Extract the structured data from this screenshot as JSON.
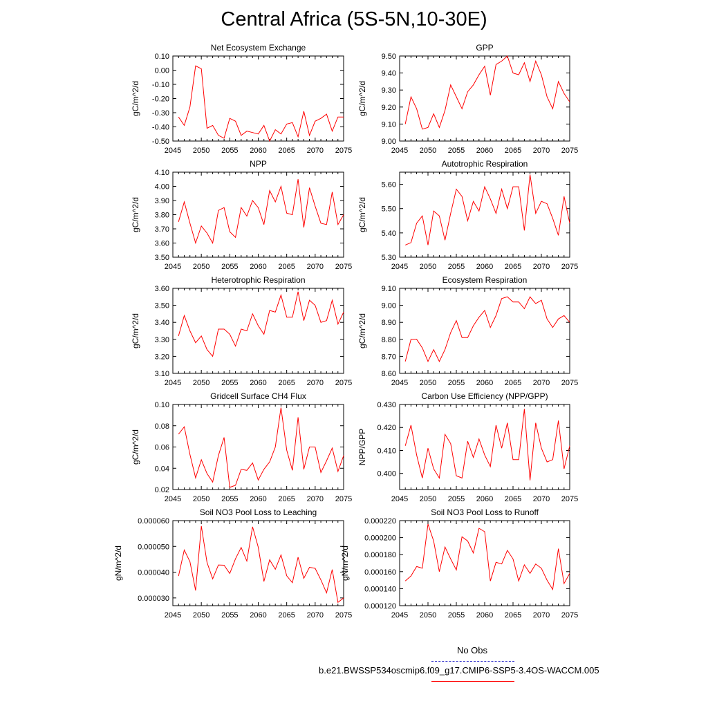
{
  "figure": {
    "title": "Central Africa (5S-5N,10-30E)"
  },
  "legend": {
    "obs_label": "No Obs",
    "obs_color": "#3333cc",
    "model_label": "b.e21.BWSSP534oscmip6.f09_g17.CMIP6-SSP5-3.4OS-WACCM.005",
    "model_color": "#ff0000"
  },
  "chart_data": [
    {
      "type": "line",
      "title": "Net Ecosystem Exchange",
      "ylabel": "gC/m^2/d",
      "xlim": [
        2045,
        2075
      ],
      "ylim": [
        -0.5,
        0.1
      ],
      "xticks": [
        "2045",
        "2050",
        "2055",
        "2060",
        "2065",
        "2070",
        "2075"
      ],
      "yticks": [
        "-0.50",
        "-0.40",
        "-0.30",
        "-0.20",
        "-0.10",
        "0.00",
        "0.10"
      ],
      "x": [
        2046,
        2047,
        2048,
        2049,
        2050,
        2051,
        2052,
        2053,
        2054,
        2055,
        2056,
        2057,
        2058,
        2059,
        2060,
        2061,
        2062,
        2063,
        2064,
        2065,
        2066,
        2067,
        2068,
        2069,
        2070,
        2071,
        2072,
        2073,
        2074,
        2075
      ],
      "y": [
        -0.33,
        -0.39,
        -0.26,
        0.03,
        0.01,
        -0.41,
        -0.39,
        -0.46,
        -0.48,
        -0.34,
        -0.36,
        -0.46,
        -0.43,
        -0.44,
        -0.45,
        -0.39,
        -0.5,
        -0.42,
        -0.45,
        -0.38,
        -0.37,
        -0.47,
        -0.29,
        -0.46,
        -0.36,
        -0.34,
        -0.31,
        -0.43,
        -0.33,
        -0.33
      ]
    },
    {
      "type": "line",
      "title": "GPP",
      "ylabel": "gC/m^2/d",
      "xlim": [
        2045,
        2075
      ],
      "ylim": [
        9.0,
        9.5
      ],
      "xticks": [
        "2045",
        "2050",
        "2055",
        "2060",
        "2065",
        "2070",
        "2075"
      ],
      "yticks": [
        "9.00",
        "9.10",
        "9.20",
        "9.30",
        "9.40",
        "9.50"
      ],
      "x": [
        2046,
        2047,
        2048,
        2049,
        2050,
        2051,
        2052,
        2053,
        2054,
        2055,
        2056,
        2057,
        2058,
        2059,
        2060,
        2061,
        2062,
        2063,
        2064,
        2065,
        2066,
        2067,
        2068,
        2069,
        2070,
        2071,
        2072,
        2073,
        2074,
        2075
      ],
      "y": [
        9.1,
        9.26,
        9.19,
        9.07,
        9.08,
        9.16,
        9.08,
        9.18,
        9.33,
        9.26,
        9.19,
        9.29,
        9.33,
        9.39,
        9.44,
        9.27,
        9.45,
        9.47,
        9.5,
        9.4,
        9.39,
        9.46,
        9.35,
        9.47,
        9.39,
        9.26,
        9.19,
        9.35,
        9.28,
        9.23
      ]
    },
    {
      "type": "line",
      "title": "NPP",
      "ylabel": "gC/m^2/d",
      "xlim": [
        2045,
        2075
      ],
      "ylim": [
        3.5,
        4.1
      ],
      "xticks": [
        "2045",
        "2050",
        "2055",
        "2060",
        "2065",
        "2070",
        "2075"
      ],
      "yticks": [
        "3.50",
        "3.60",
        "3.70",
        "3.80",
        "3.90",
        "4.00",
        "4.10"
      ],
      "x": [
        2046,
        2047,
        2048,
        2049,
        2050,
        2051,
        2052,
        2053,
        2054,
        2055,
        2056,
        2057,
        2058,
        2059,
        2060,
        2061,
        2062,
        2063,
        2064,
        2065,
        2066,
        2067,
        2068,
        2069,
        2070,
        2071,
        2072,
        2073,
        2074,
        2075
      ],
      "y": [
        3.75,
        3.89,
        3.74,
        3.6,
        3.72,
        3.67,
        3.6,
        3.83,
        3.85,
        3.68,
        3.64,
        3.85,
        3.79,
        3.9,
        3.85,
        3.73,
        3.97,
        3.89,
        4.0,
        3.81,
        3.8,
        4.05,
        3.71,
        3.99,
        3.86,
        3.74,
        3.73,
        3.96,
        3.73,
        3.8
      ]
    },
    {
      "type": "line",
      "title": "Autotrophic Respiration",
      "ylabel": "gC/m^2/d",
      "xlim": [
        2045,
        2075
      ],
      "ylim": [
        5.3,
        5.65
      ],
      "xticks": [
        "2045",
        "2050",
        "2055",
        "2060",
        "2065",
        "2070",
        "2075"
      ],
      "yticks": [
        "5.30",
        "5.40",
        "5.50",
        "5.60"
      ],
      "x": [
        2046,
        2047,
        2048,
        2049,
        2050,
        2051,
        2052,
        2053,
        2054,
        2055,
        2056,
        2057,
        2058,
        2059,
        2060,
        2061,
        2062,
        2063,
        2064,
        2065,
        2066,
        2067,
        2068,
        2069,
        2070,
        2071,
        2072,
        2073,
        2074,
        2075
      ],
      "y": [
        5.35,
        5.36,
        5.44,
        5.47,
        5.35,
        5.49,
        5.47,
        5.37,
        5.48,
        5.58,
        5.55,
        5.45,
        5.53,
        5.49,
        5.59,
        5.54,
        5.48,
        5.58,
        5.5,
        5.59,
        5.59,
        5.41,
        5.64,
        5.48,
        5.53,
        5.52,
        5.46,
        5.39,
        5.55,
        5.44
      ]
    },
    {
      "type": "line",
      "title": "Heterotrophic Respiration",
      "ylabel": "gC/m^2/d",
      "xlim": [
        2045,
        2075
      ],
      "ylim": [
        3.1,
        3.6
      ],
      "xticks": [
        "2045",
        "2050",
        "2055",
        "2060",
        "2065",
        "2070",
        "2075"
      ],
      "yticks": [
        "3.10",
        "3.20",
        "3.30",
        "3.40",
        "3.50",
        "3.60"
      ],
      "x": [
        2046,
        2047,
        2048,
        2049,
        2050,
        2051,
        2052,
        2053,
        2054,
        2055,
        2056,
        2057,
        2058,
        2059,
        2060,
        2061,
        2062,
        2063,
        2064,
        2065,
        2066,
        2067,
        2068,
        2069,
        2070,
        2071,
        2072,
        2073,
        2074,
        2075
      ],
      "y": [
        3.32,
        3.44,
        3.35,
        3.28,
        3.32,
        3.24,
        3.2,
        3.36,
        3.36,
        3.33,
        3.26,
        3.36,
        3.35,
        3.45,
        3.38,
        3.33,
        3.47,
        3.46,
        3.56,
        3.43,
        3.43,
        3.58,
        3.41,
        3.53,
        3.5,
        3.4,
        3.41,
        3.53,
        3.39,
        3.46
      ]
    },
    {
      "type": "line",
      "title": "Ecosystem Respiration",
      "ylabel": "gC/m^2/d",
      "xlim": [
        2045,
        2075
      ],
      "ylim": [
        8.6,
        9.1
      ],
      "xticks": [
        "2045",
        "2050",
        "2055",
        "2060",
        "2065",
        "2070",
        "2075"
      ],
      "yticks": [
        "8.60",
        "8.70",
        "8.80",
        "8.90",
        "9.00",
        "9.10"
      ],
      "x": [
        2046,
        2047,
        2048,
        2049,
        2050,
        2051,
        2052,
        2053,
        2054,
        2055,
        2056,
        2057,
        2058,
        2059,
        2060,
        2061,
        2062,
        2063,
        2064,
        2065,
        2066,
        2067,
        2068,
        2069,
        2070,
        2071,
        2072,
        2073,
        2074,
        2075
      ],
      "y": [
        8.67,
        8.8,
        8.8,
        8.75,
        8.67,
        8.74,
        8.67,
        8.74,
        8.84,
        8.91,
        8.81,
        8.81,
        8.88,
        8.93,
        8.97,
        8.87,
        8.94,
        9.04,
        9.05,
        9.02,
        9.02,
        8.98,
        9.05,
        9.01,
        9.03,
        8.92,
        8.87,
        8.92,
        8.94,
        8.9
      ]
    },
    {
      "type": "line",
      "title": "Gridcell Surface CH4 Flux",
      "ylabel": "gC/m^2/d",
      "xlim": [
        2045,
        2075
      ],
      "ylim": [
        0.02,
        0.1
      ],
      "xticks": [
        "2045",
        "2050",
        "2055",
        "2060",
        "2065",
        "2070",
        "2075"
      ],
      "yticks": [
        "0.02",
        "0.04",
        "0.06",
        "0.08",
        "0.10"
      ],
      "x": [
        2046,
        2047,
        2048,
        2049,
        2050,
        2051,
        2052,
        2053,
        2054,
        2055,
        2056,
        2057,
        2058,
        2059,
        2060,
        2061,
        2062,
        2063,
        2064,
        2065,
        2066,
        2067,
        2068,
        2069,
        2070,
        2071,
        2072,
        2073,
        2074,
        2075
      ],
      "y": [
        0.072,
        0.079,
        0.053,
        0.031,
        0.048,
        0.035,
        0.027,
        0.052,
        0.069,
        0.022,
        0.024,
        0.039,
        0.038,
        0.045,
        0.029,
        0.039,
        0.046,
        0.06,
        0.097,
        0.057,
        0.038,
        0.088,
        0.039,
        0.06,
        0.06,
        0.036,
        0.047,
        0.059,
        0.037,
        0.052
      ]
    },
    {
      "type": "line",
      "title": "Carbon Use Efficiency (NPP/GPP)",
      "ylabel": "NPP/GPP",
      "xlim": [
        2045,
        2075
      ],
      "ylim": [
        0.393,
        0.43
      ],
      "xticks": [
        "2045",
        "2050",
        "2055",
        "2060",
        "2065",
        "2070",
        "2075"
      ],
      "yticks": [
        "0.400",
        "0.410",
        "0.420",
        "0.430"
      ],
      "x": [
        2046,
        2047,
        2048,
        2049,
        2050,
        2051,
        2052,
        2053,
        2054,
        2055,
        2056,
        2057,
        2058,
        2059,
        2060,
        2061,
        2062,
        2063,
        2064,
        2065,
        2066,
        2067,
        2068,
        2069,
        2070,
        2071,
        2072,
        2073,
        2074,
        2075
      ],
      "y": [
        0.412,
        0.421,
        0.408,
        0.398,
        0.411,
        0.402,
        0.398,
        0.417,
        0.413,
        0.399,
        0.398,
        0.414,
        0.407,
        0.415,
        0.408,
        0.403,
        0.421,
        0.411,
        0.422,
        0.406,
        0.406,
        0.428,
        0.397,
        0.422,
        0.411,
        0.405,
        0.406,
        0.423,
        0.402,
        0.412
      ]
    },
    {
      "type": "line",
      "title": "Soil NO3 Pool Loss to Leaching",
      "ylabel": "gN/m^2/d",
      "xlim": [
        2045,
        2075
      ],
      "ylim": [
        2.7e-05,
        6e-05
      ],
      "xticks": [
        "2045",
        "2050",
        "2055",
        "2060",
        "2065",
        "2070",
        "2075"
      ],
      "yticks": [
        "0.000030",
        "0.000040",
        "0.000050",
        "0.000060"
      ],
      "x": [
        2046,
        2047,
        2048,
        2049,
        2050,
        2051,
        2052,
        2053,
        2054,
        2055,
        2056,
        2057,
        2058,
        2059,
        2060,
        2061,
        2062,
        2063,
        2064,
        2065,
        2066,
        2067,
        2068,
        2069,
        2070,
        2071,
        2072,
        2073,
        2074,
        2075
      ],
      "y": [
        3.85e-05,
        4.86e-05,
        4.41e-05,
        3.29e-05,
        5.79e-05,
        4.38e-05,
        3.74e-05,
        4.28e-05,
        4.27e-05,
        3.95e-05,
        4.52e-05,
        4.96e-05,
        4.43e-05,
        5.76e-05,
        4.97e-05,
        3.64e-05,
        4.48e-05,
        4.11e-05,
        4.67e-05,
        3.86e-05,
        3.59e-05,
        4.58e-05,
        3.76e-05,
        4.19e-05,
        4.15e-05,
        3.7e-05,
        3.2e-05,
        4.1e-05,
        2.83e-05,
        3e-05
      ]
    },
    {
      "type": "line",
      "title": "Soil NO3 Pool Loss to Runoff",
      "ylabel": "gN/m^2/d",
      "xlim": [
        2045,
        2075
      ],
      "ylim": [
        0.00012,
        0.00022
      ],
      "xticks": [
        "2045",
        "2050",
        "2055",
        "2060",
        "2065",
        "2070",
        "2075"
      ],
      "yticks": [
        "0.000120",
        "0.000140",
        "0.000160",
        "0.000180",
        "0.000200",
        "0.000220"
      ],
      "x": [
        2046,
        2047,
        2048,
        2049,
        2050,
        2051,
        2052,
        2053,
        2054,
        2055,
        2056,
        2057,
        2058,
        2059,
        2060,
        2061,
        2062,
        2063,
        2064,
        2065,
        2066,
        2067,
        2068,
        2069,
        2070,
        2071,
        2072,
        2073,
        2074,
        2075
      ],
      "y": [
        0.000149,
        0.000155,
        0.000166,
        0.000164,
        0.000216,
        0.000196,
        0.00016,
        0.000189,
        0.000175,
        0.000162,
        0.000201,
        0.000196,
        0.000182,
        0.000211,
        0.000207,
        0.000149,
        0.000171,
        0.000169,
        0.000185,
        0.000175,
        0.000149,
        0.000168,
        0.000158,
        0.000169,
        0.000164,
        0.00015,
        0.000139,
        0.000187,
        0.000146,
        0.000158
      ]
    }
  ]
}
